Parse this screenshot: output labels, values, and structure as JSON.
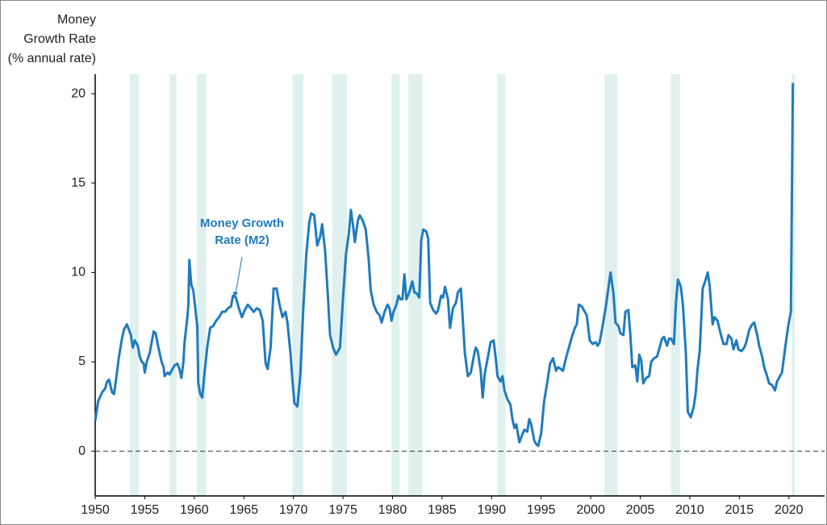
{
  "chart_data": {
    "type": "line",
    "y_label": [
      "Money",
      "Growth Rate",
      "(% annual rate)"
    ],
    "xlim": [
      1950,
      2023.6
    ],
    "xticks": [
      1950,
      1955,
      1960,
      1965,
      1970,
      1975,
      1980,
      1985,
      1990,
      1995,
      2000,
      2005,
      2010,
      2015,
      2020
    ],
    "ylim": [
      -2.5,
      21.1
    ],
    "yticks": [
      0,
      5,
      10,
      15,
      20
    ],
    "hline": 0,
    "shade_color": "#dff0ef",
    "shaded_periods": [
      [
        1953.5,
        1954.4
      ],
      [
        1957.5,
        1958.2
      ],
      [
        1960.25,
        1961.2
      ],
      [
        1969.9,
        1971.0
      ],
      [
        1973.9,
        1975.4
      ],
      [
        1979.9,
        1980.7
      ],
      [
        1981.6,
        1983.0
      ],
      [
        1990.6,
        1991.4
      ],
      [
        2001.4,
        2002.7
      ],
      [
        2008.1,
        2009.0
      ],
      [
        2020.3,
        2020.6
      ]
    ],
    "series": [
      {
        "name": "Money Growth Rate (M2)",
        "color": "#1f7bbf",
        "x": [
          1950.0,
          1950.3,
          1950.7,
          1951.0,
          1951.2,
          1951.4,
          1951.7,
          1951.9,
          1952.1,
          1952.4,
          1952.7,
          1952.9,
          1953.2,
          1953.4,
          1953.6,
          1953.8,
          1954.0,
          1954.3,
          1954.5,
          1954.7,
          1954.9,
          1955.0,
          1955.2,
          1955.5,
          1955.7,
          1955.9,
          1956.1,
          1956.3,
          1956.5,
          1956.7,
          1956.9,
          1957.0,
          1957.3,
          1957.5,
          1957.8,
          1958.0,
          1958.3,
          1958.5,
          1958.7,
          1958.9,
          1959.0,
          1959.3,
          1959.4,
          1959.5,
          1959.7,
          1959.9,
          1960.1,
          1960.3,
          1960.4,
          1960.6,
          1960.8,
          1961.0,
          1961.3,
          1961.6,
          1961.9,
          1962.2,
          1962.5,
          1962.8,
          1963.1,
          1963.4,
          1963.7,
          1963.9,
          1964.2,
          1964.5,
          1964.8,
          1965.1,
          1965.4,
          1965.7,
          1966.0,
          1966.3,
          1966.6,
          1966.9,
          1967.2,
          1967.4,
          1967.7,
          1968.0,
          1968.3,
          1968.6,
          1968.9,
          1969.2,
          1969.4,
          1969.7,
          1969.9,
          1970.1,
          1970.4,
          1970.7,
          1971.0,
          1971.3,
          1971.6,
          1971.8,
          1972.1,
          1972.4,
          1972.7,
          1972.9,
          1973.2,
          1973.5,
          1973.7,
          1974.0,
          1974.3,
          1974.7,
          1975.0,
          1975.3,
          1975.6,
          1975.8,
          1976.0,
          1976.2,
          1976.5,
          1976.7,
          1977.0,
          1977.3,
          1977.6,
          1977.8,
          1978.1,
          1978.4,
          1978.7,
          1978.9,
          1979.2,
          1979.5,
          1979.7,
          1979.9,
          1980.1,
          1980.4,
          1980.6,
          1980.8,
          1981.0,
          1981.2,
          1981.4,
          1981.7,
          1982.0,
          1982.2,
          1982.5,
          1982.7,
          1982.9,
          1983.1,
          1983.4,
          1983.6,
          1983.8,
          1984.1,
          1984.4,
          1984.6,
          1984.9,
          1985.1,
          1985.3,
          1985.6,
          1985.8,
          1986.1,
          1986.4,
          1986.6,
          1986.9,
          1987.1,
          1987.3,
          1987.6,
          1987.9,
          1988.2,
          1988.4,
          1988.6,
          1988.9,
          1989.1,
          1989.3,
          1989.6,
          1989.9,
          1990.2,
          1990.4,
          1990.6,
          1990.9,
          1991.1,
          1991.3,
          1991.6,
          1991.9,
          1992.1,
          1992.3,
          1992.5,
          1992.8,
          1993.0,
          1993.3,
          1993.6,
          1993.8,
          1994.0,
          1994.3,
          1994.5,
          1994.7,
          1995.0,
          1995.3,
          1995.6,
          1995.9,
          1996.2,
          1996.5,
          1996.7,
          1997.0,
          1997.2,
          1997.5,
          1997.8,
          1998.1,
          1998.4,
          1998.6,
          1998.8,
          1999.1,
          1999.4,
          1999.6,
          1999.9,
          2000.2,
          2000.5,
          2000.7,
          2000.9,
          2001.2,
          2001.5,
          2001.8,
          2002.0,
          2002.3,
          2002.5,
          2002.8,
          2003.0,
          2003.3,
          2003.5,
          2003.8,
          2004.0,
          2004.2,
          2004.5,
          2004.7,
          2004.9,
          2005.1,
          2005.3,
          2005.6,
          2005.9,
          2006.1,
          2006.4,
          2006.7,
          2006.9,
          2007.2,
          2007.4,
          2007.7,
          2007.9,
          2008.1,
          2008.4,
          2008.6,
          2008.8,
          2009.1,
          2009.3,
          2009.6,
          2009.8,
          2010.1,
          2010.4,
          2010.6,
          2010.8,
          2011.0,
          2011.3,
          2011.6,
          2011.8,
          2012.0,
          2012.3,
          2012.5,
          2012.8,
          2013.1,
          2013.4,
          2013.7,
          2013.9,
          2014.2,
          2014.4,
          2014.7,
          2014.9,
          2015.2,
          2015.5,
          2015.7,
          2016.0,
          2016.3,
          2016.5,
          2016.8,
          2017.0,
          2017.3,
          2017.5,
          2017.8,
          2018.0,
          2018.3,
          2018.6,
          2018.8,
          2019.1,
          2019.3,
          2019.6,
          2019.9,
          2020.2,
          2020.4
        ],
        "values": [
          1.7,
          2.8,
          3.3,
          3.5,
          3.9,
          4.0,
          3.3,
          3.2,
          4.0,
          5.3,
          6.3,
          6.8,
          7.1,
          6.8,
          6.5,
          5.8,
          6.2,
          5.9,
          5.3,
          5.0,
          4.9,
          4.4,
          5.0,
          5.5,
          6.1,
          6.7,
          6.6,
          6.0,
          5.5,
          5.0,
          4.7,
          4.2,
          4.4,
          4.3,
          4.6,
          4.8,
          4.9,
          4.6,
          4.1,
          5.0,
          6.0,
          7.5,
          8.2,
          10.7,
          9.3,
          9.0,
          8.0,
          7.0,
          3.8,
          3.2,
          3.0,
          4.2,
          5.8,
          6.9,
          7.0,
          7.3,
          7.5,
          7.8,
          7.8,
          8.0,
          8.1,
          8.7,
          8.6,
          8.0,
          7.5,
          7.9,
          8.2,
          8.0,
          7.8,
          8.0,
          7.9,
          7.3,
          4.9,
          4.6,
          5.8,
          9.1,
          9.1,
          8.2,
          7.5,
          7.8,
          7.2,
          5.5,
          4.0,
          2.7,
          2.5,
          4.3,
          8.0,
          11.0,
          12.8,
          13.3,
          13.2,
          11.5,
          12.0,
          12.7,
          11.2,
          8.5,
          6.5,
          5.8,
          5.4,
          5.8,
          8.5,
          11.0,
          12.2,
          13.5,
          12.7,
          11.7,
          12.9,
          13.2,
          12.9,
          12.4,
          10.7,
          9.0,
          8.2,
          7.8,
          7.6,
          7.2,
          7.8,
          8.2,
          8.0,
          7.3,
          7.8,
          8.2,
          8.7,
          8.5,
          8.5,
          9.9,
          8.5,
          8.9,
          9.5,
          8.9,
          8.8,
          8.6,
          11.8,
          12.4,
          12.3,
          11.9,
          8.3,
          7.9,
          7.7,
          7.9,
          8.7,
          8.6,
          9.2,
          8.5,
          6.9,
          8.0,
          8.3,
          8.9,
          9.1,
          7.3,
          5.5,
          4.2,
          4.4,
          5.3,
          5.8,
          5.6,
          4.5,
          3.0,
          4.3,
          5.2,
          6.1,
          6.2,
          5.3,
          4.2,
          3.9,
          4.2,
          3.4,
          2.9,
          2.6,
          1.8,
          1.3,
          1.5,
          0.5,
          0.8,
          1.2,
          1.1,
          1.8,
          1.5,
          0.6,
          0.4,
          0.3,
          1.0,
          2.8,
          3.8,
          4.9,
          5.2,
          4.5,
          4.7,
          4.6,
          4.5,
          5.2,
          5.8,
          6.4,
          6.9,
          7.1,
          8.2,
          8.1,
          7.8,
          7.6,
          6.2,
          6.0,
          6.1,
          5.9,
          6.1,
          7.0,
          8.0,
          9.2,
          10.0,
          8.8,
          7.2,
          7.0,
          6.6,
          6.5,
          7.8,
          7.9,
          6.5,
          4.7,
          4.8,
          3.9,
          5.4,
          5.1,
          3.8,
          4.1,
          4.2,
          5.0,
          5.2,
          5.3,
          5.7,
          6.3,
          6.4,
          5.9,
          6.3,
          6.3,
          6.0,
          8.3,
          9.6,
          9.2,
          8.2,
          5.5,
          2.2,
          1.9,
          2.5,
          3.3,
          4.7,
          5.6,
          9.1,
          9.6,
          10.0,
          9.3,
          7.1,
          7.5,
          7.3,
          6.6,
          6.0,
          6.0,
          6.5,
          6.3,
          5.7,
          6.2,
          5.7,
          5.6,
          5.8,
          6.1,
          6.8,
          7.1,
          7.2,
          6.5,
          5.9,
          5.3,
          4.7,
          4.2,
          3.8,
          3.7,
          3.4,
          3.9,
          4.2,
          4.4,
          5.7,
          6.9,
          7.8,
          20.6
        ]
      }
    ]
  }
}
